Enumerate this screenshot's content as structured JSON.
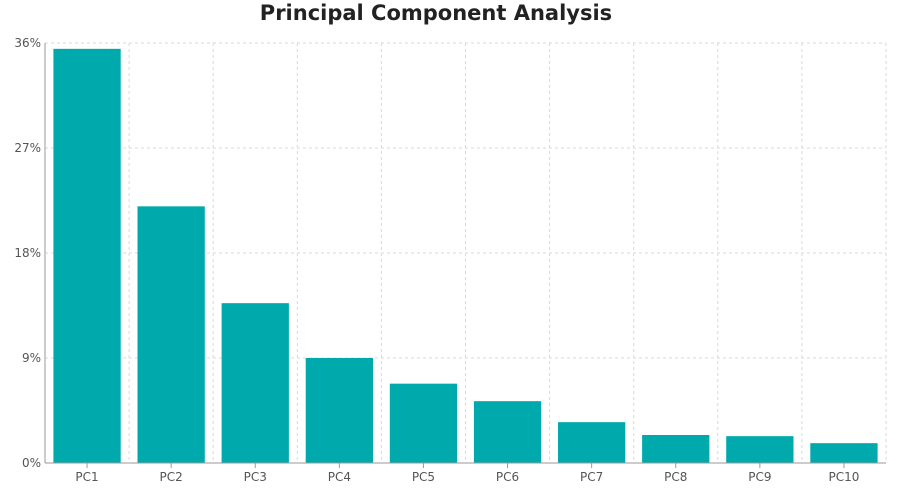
{
  "chart_data": {
    "type": "bar",
    "title": "Principal Component Analysis",
    "categories": [
      "PC1",
      "PC2",
      "PC3",
      "PC4",
      "PC5",
      "PC6",
      "PC7",
      "PC8",
      "PC9",
      "PC10"
    ],
    "values": [
      35.5,
      22.0,
      13.7,
      9.0,
      6.8,
      5.3,
      3.5,
      2.4,
      2.3,
      1.7
    ],
    "ylim": [
      0,
      36
    ],
    "yticks": [
      0,
      9,
      18,
      27,
      36
    ],
    "ytick_labels": [
      "0%",
      "9%",
      "18%",
      "27%",
      "36%"
    ],
    "xlabel": "",
    "ylabel": "",
    "grid": true,
    "bar_color": "#00a9ac"
  }
}
